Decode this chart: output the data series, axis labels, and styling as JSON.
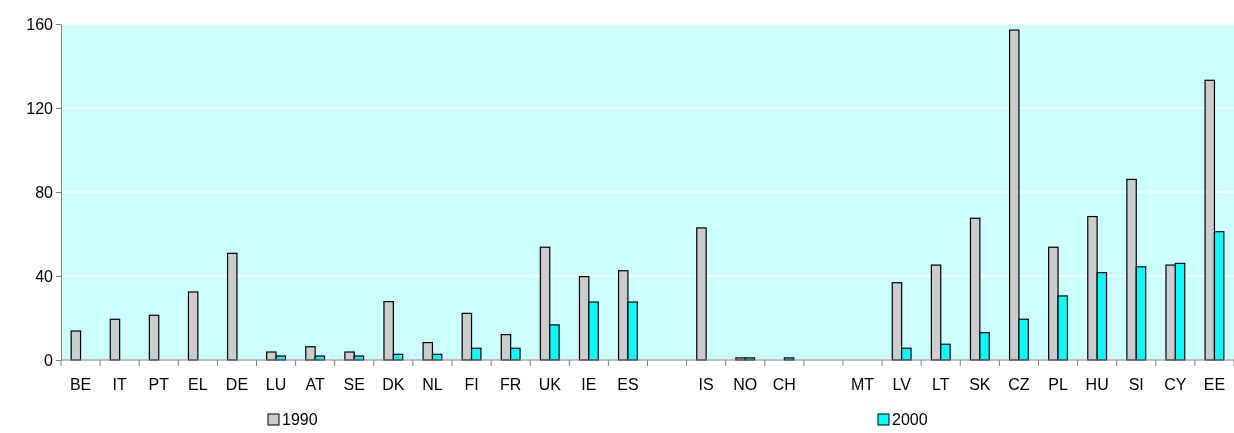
{
  "chart_data": {
    "type": "bar",
    "categories": [
      "BE",
      "IT",
      "PT",
      "EL",
      "DE",
      "LU",
      "AT",
      "SE",
      "DK",
      "NL",
      "FI",
      "FR",
      "UK",
      "IE",
      "ES",
      null,
      "IS",
      "NO",
      "CH",
      null,
      "MT",
      "LV",
      "LT",
      "SK",
      "CZ",
      "PL",
      "HU",
      "SI",
      "CY",
      "EE"
    ],
    "series": [
      {
        "name": "1990",
        "color": "#cccccc",
        "values": [
          13.8,
          19.4,
          21.3,
          32.4,
          50.8,
          3.8,
          6.3,
          3.8,
          27.8,
          8.3,
          22.2,
          12.1,
          53.7,
          39.7,
          42.5,
          null,
          62.9,
          1,
          null,
          null,
          null,
          36.8,
          45.2,
          67.5,
          157.1,
          53.7,
          68.3,
          86,
          45.2,
          133.2
        ]
      },
      {
        "name": "2000",
        "color": "#00ffff",
        "values": [
          null,
          null,
          null,
          null,
          null,
          1.9,
          1.9,
          1.9,
          2.7,
          2.7,
          5.6,
          5.6,
          16.7,
          27.6,
          27.6,
          null,
          null,
          1,
          1,
          null,
          null,
          5.6,
          7.5,
          13,
          19.4,
          30.5,
          41.6,
          44.4,
          46,
          61.1
        ]
      }
    ],
    "ylim": [
      0,
      160
    ],
    "yticks": [
      0,
      40,
      80,
      120,
      160
    ],
    "grid": "y",
    "legend": "bottom"
  }
}
